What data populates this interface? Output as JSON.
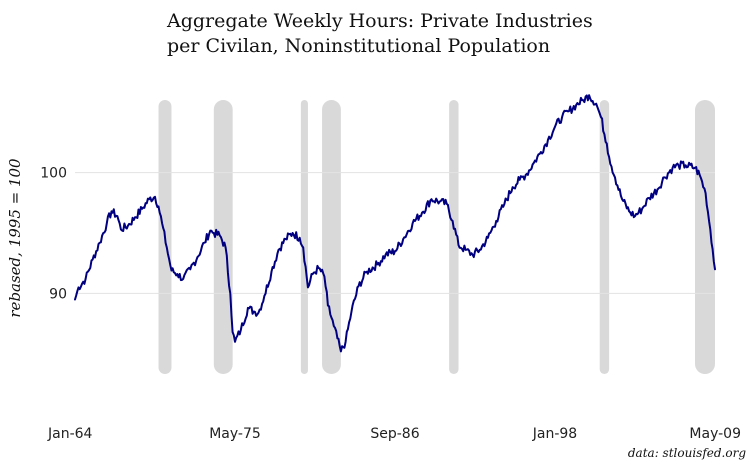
{
  "chart_data": {
    "type": "line",
    "title_lines": [
      "Aggregate Weekly Hours: Private Industries",
      "per Civilan, Noninstitutional Population"
    ],
    "ylabel": "rebased, 1995 = 100",
    "source": "data: stlouisfed.org",
    "x_range": [
      "1964-01",
      "2009-05"
    ],
    "ylim": [
      83,
      107
    ],
    "yticks": [
      90,
      100
    ],
    "ytick_labels": [
      "90",
      "100"
    ],
    "xticks": [
      "1964-01",
      "1975-05",
      "1986-09",
      "1998-01",
      "2009-05"
    ],
    "xtick_labels": [
      "Jan-64",
      "May-75",
      "Sep-86",
      "Jan-98",
      "May-09"
    ],
    "grid": "horizontal",
    "line_color": "#000080",
    "recession_color": "#d9d9d9",
    "recessions": [
      {
        "start": "1969-12",
        "end": "1970-11"
      },
      {
        "start": "1973-11",
        "end": "1975-03"
      },
      {
        "start": "1980-01",
        "end": "1980-07"
      },
      {
        "start": "1981-07",
        "end": "1982-11"
      },
      {
        "start": "1990-07",
        "end": "1991-03"
      },
      {
        "start": "2001-03",
        "end": "2001-11"
      },
      {
        "start": "2007-12",
        "end": "2009-05"
      }
    ],
    "series": [
      {
        "points": [
          [
            "1964-01",
            89.5
          ],
          [
            "1964-04",
            90.5
          ],
          [
            "1964-10",
            91.2
          ],
          [
            "1965-04",
            92.8
          ],
          [
            "1965-10",
            94.2
          ],
          [
            "1966-04",
            95.8
          ],
          [
            "1966-08",
            96.8
          ],
          [
            "1967-01",
            96.4
          ],
          [
            "1967-04",
            95.3
          ],
          [
            "1967-10",
            95.6
          ],
          [
            "1968-04",
            96.3
          ],
          [
            "1968-10",
            97.0
          ],
          [
            "1969-04",
            97.8
          ],
          [
            "1969-09",
            98.0
          ],
          [
            "1969-12",
            97.2
          ],
          [
            "1970-03",
            95.8
          ],
          [
            "1970-07",
            93.8
          ],
          [
            "1970-11",
            91.9
          ],
          [
            "1971-04",
            91.6
          ],
          [
            "1971-09",
            91.2
          ],
          [
            "1972-03",
            92.0
          ],
          [
            "1972-09",
            93.0
          ],
          [
            "1973-03",
            94.2
          ],
          [
            "1973-08",
            95.2
          ],
          [
            "1973-11",
            95.0
          ],
          [
            "1974-04",
            94.8
          ],
          [
            "1974-09",
            93.8
          ],
          [
            "1975-01",
            90.0
          ],
          [
            "1975-03",
            86.8
          ],
          [
            "1975-05",
            86.0
          ],
          [
            "1975-10",
            87.0
          ],
          [
            "1976-04",
            88.8
          ],
          [
            "1976-09",
            88.5
          ],
          [
            "1977-01",
            88.4
          ],
          [
            "1977-06",
            89.8
          ],
          [
            "1977-12",
            91.8
          ],
          [
            "1978-06",
            93.6
          ],
          [
            "1978-12",
            94.5
          ],
          [
            "1979-06",
            95.0
          ],
          [
            "1979-12",
            94.6
          ],
          [
            "1980-03",
            93.8
          ],
          [
            "1980-07",
            90.5
          ],
          [
            "1980-11",
            91.6
          ],
          [
            "1981-04",
            92.1
          ],
          [
            "1981-09",
            91.4
          ],
          [
            "1981-12",
            89.0
          ],
          [
            "1982-05",
            87.3
          ],
          [
            "1982-11",
            85.2
          ],
          [
            "1983-03",
            86.0
          ],
          [
            "1983-08",
            88.5
          ],
          [
            "1984-02",
            90.6
          ],
          [
            "1984-09",
            91.8
          ],
          [
            "1985-06",
            92.4
          ],
          [
            "1986-01",
            93.2
          ],
          [
            "1986-09",
            93.5
          ],
          [
            "1987-04",
            94.5
          ],
          [
            "1987-12",
            95.8
          ],
          [
            "1988-08",
            96.7
          ],
          [
            "1989-04",
            97.8
          ],
          [
            "1989-11",
            97.6
          ],
          [
            "1990-05",
            97.4
          ],
          [
            "1990-10",
            96.0
          ],
          [
            "1991-03",
            94.0
          ],
          [
            "1991-09",
            93.6
          ],
          [
            "1992-03",
            93.2
          ],
          [
            "1992-09",
            93.6
          ],
          [
            "1993-04",
            94.6
          ],
          [
            "1993-11",
            96.0
          ],
          [
            "1994-06",
            97.4
          ],
          [
            "1995-01",
            98.8
          ],
          [
            "1995-07",
            99.4
          ],
          [
            "1996-01",
            99.9
          ],
          [
            "1996-07",
            100.8
          ],
          [
            "1997-01",
            101.7
          ],
          [
            "1997-07",
            102.7
          ],
          [
            "1998-01",
            103.8
          ],
          [
            "1998-07",
            104.6
          ],
          [
            "1999-01",
            105.1
          ],
          [
            "1999-07",
            105.6
          ],
          [
            "2000-01",
            106.0
          ],
          [
            "2000-06",
            106.4
          ],
          [
            "2000-12",
            105.7
          ],
          [
            "2001-04",
            104.6
          ],
          [
            "2001-09",
            102.4
          ],
          [
            "2001-11",
            101.3
          ],
          [
            "2002-04",
            99.6
          ],
          [
            "2002-10",
            97.8
          ],
          [
            "2003-04",
            96.8
          ],
          [
            "2003-09",
            96.4
          ],
          [
            "2004-03",
            97.0
          ],
          [
            "2004-09",
            97.9
          ],
          [
            "2005-04",
            98.6
          ],
          [
            "2005-10",
            99.6
          ],
          [
            "2006-05",
            100.4
          ],
          [
            "2006-10",
            100.6
          ],
          [
            "2007-04",
            100.6
          ],
          [
            "2007-12",
            100.4
          ],
          [
            "2008-04",
            99.8
          ],
          [
            "2008-09",
            98.3
          ],
          [
            "2009-01",
            95.3
          ],
          [
            "2009-05",
            92.0
          ]
        ]
      }
    ]
  }
}
